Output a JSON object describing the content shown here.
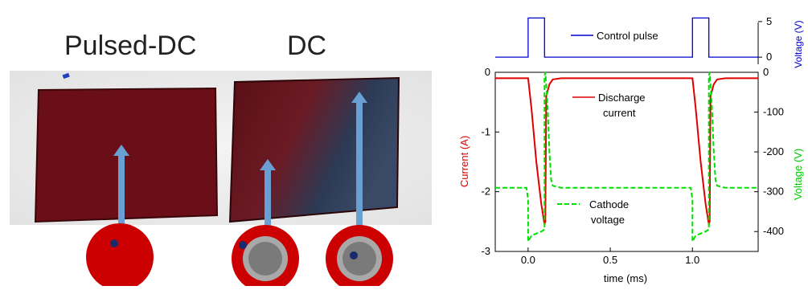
{
  "photo": {
    "label_pulsed": "Pulsed-DC",
    "label_dc": "DC",
    "colors": {
      "sample_dark": "#6e1018",
      "sample_mid": "#8a1e24",
      "target_red": "#cc0000",
      "target_grey": "#808080",
      "dot": "#1a2a6a",
      "arrow": "#6a9fd4"
    }
  },
  "chart_data": {
    "type": "line",
    "xlabel": "time (ms)",
    "x_ticks": [
      "0.0",
      "0.5",
      "1.0"
    ],
    "xlim": [
      -0.2,
      1.4
    ],
    "left_axis": {
      "label": "Current (A)",
      "ticks": [
        "0",
        "-1",
        "-2",
        "-3"
      ],
      "range": [
        -3,
        0
      ],
      "color": "#e00000"
    },
    "right_axis_top": {
      "label": "Voltage (V)",
      "ticks": [
        "5",
        "0"
      ],
      "range": [
        -1,
        6
      ],
      "color": "#0000cc"
    },
    "right_axis_bottom": {
      "label": "Voltage (V)",
      "ticks": [
        "0",
        "-100",
        "-200",
        "-300",
        "-400"
      ],
      "range": [
        -450,
        0
      ],
      "color": "#00cc00"
    },
    "annotations": {
      "control": "Control pulse",
      "discharge_1": "Discharge",
      "discharge_2": "current",
      "cathode_1": "Cathode",
      "cathode_2": "voltage"
    },
    "series": [
      {
        "key": "control",
        "color": "#0000cc",
        "dash": "",
        "x": [
          -0.2,
          -0.005,
          0.0,
          0.0,
          0.002,
          0.1,
          0.1,
          0.12,
          1.0,
          1.0,
          1.1,
          1.1,
          1.4
        ],
        "y": [
          0,
          0,
          0,
          5.5,
          5.5,
          5.5,
          0,
          0,
          0,
          5.5,
          5.5,
          0,
          0
        ]
      },
      {
        "key": "current",
        "color": "#e00000",
        "dash": "",
        "x": [
          -0.2,
          0.0,
          0.02,
          0.05,
          0.08,
          0.1,
          0.105,
          0.11,
          0.13,
          0.15,
          0.2,
          0.5,
          1.0,
          1.02,
          1.05,
          1.08,
          1.1,
          1.105,
          1.11,
          1.13,
          1.15,
          1.2,
          1.4
        ],
        "y": [
          -0.1,
          -0.1,
          -0.6,
          -1.5,
          -2.2,
          -2.55,
          -2.5,
          -0.4,
          -0.2,
          -0.12,
          -0.1,
          -0.1,
          -0.1,
          -0.6,
          -1.5,
          -2.2,
          -2.55,
          -2.5,
          -0.4,
          -0.2,
          -0.12,
          -0.1,
          -0.1
        ]
      },
      {
        "key": "cathode",
        "color": "#00e000",
        "dash": "6,3",
        "x": [
          -0.2,
          -0.01,
          0.0,
          0.0,
          0.02,
          0.05,
          0.08,
          0.1,
          0.1,
          0.105,
          0.11,
          0.12,
          0.13,
          0.14,
          0.15,
          0.2,
          0.5,
          0.99,
          1.0,
          1.0,
          1.02,
          1.05,
          1.08,
          1.1,
          1.1,
          1.105,
          1.11,
          1.12,
          1.13,
          1.14,
          1.15,
          1.2,
          1.4
        ],
        "y": [
          -290,
          -290,
          -320,
          -425,
          -410,
          -405,
          -400,
          -395,
          -10,
          0,
          -30,
          -100,
          -200,
          -270,
          -285,
          -290,
          -290,
          -290,
          -320,
          -425,
          -410,
          -405,
          -400,
          -395,
          -10,
          0,
          -30,
          -100,
          -200,
          -270,
          -285,
          -290,
          -290
        ]
      }
    ]
  }
}
